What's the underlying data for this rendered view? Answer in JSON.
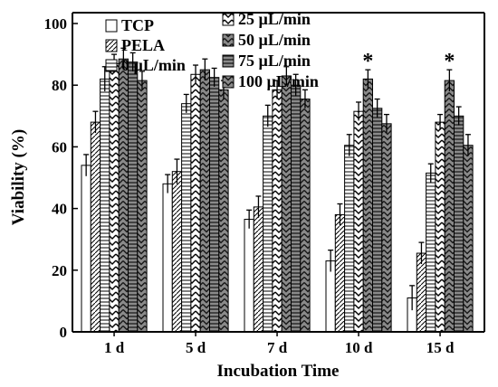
{
  "chart_data": {
    "type": "bar",
    "title": "",
    "xlabel": "Incubation Time",
    "ylabel": "Viability (%)",
    "categories": [
      "1 d",
      "5 d",
      "7 d",
      "10 d",
      "15 d"
    ],
    "ylim": [
      0,
      100
    ],
    "yticks": [
      0,
      20,
      40,
      60,
      80,
      100
    ],
    "grid": false,
    "legend_position": "top-left",
    "series": [
      {
        "name": "TCP",
        "values": [
          54,
          48,
          36.5,
          23,
          11
        ],
        "errors": [
          3.5,
          3,
          3,
          3.5,
          4
        ],
        "pattern": "white",
        "significant": [
          false,
          false,
          false,
          false,
          false
        ]
      },
      {
        "name": "PELA",
        "values": [
          68,
          52,
          40.5,
          38,
          25.5
        ],
        "errors": [
          3.5,
          4,
          3.5,
          3.5,
          3.5
        ],
        "pattern": "diagonal",
        "significant": [
          false,
          false,
          false,
          false,
          false
        ]
      },
      {
        "name": "0 µL/min",
        "values": [
          82,
          74,
          70,
          60.5,
          51.5
        ],
        "errors": [
          4,
          3,
          3.5,
          3.5,
          3
        ],
        "pattern": "horizontal",
        "significant": [
          false,
          false,
          false,
          false,
          false
        ]
      },
      {
        "name": "25 µL/min",
        "values": [
          87,
          83.5,
          78.5,
          71.5,
          68
        ],
        "errors": [
          3,
          3,
          3,
          3,
          2.5
        ],
        "pattern": "chevron-light",
        "significant": [
          false,
          false,
          false,
          false,
          false
        ]
      },
      {
        "name": "50 µL/min",
        "values": [
          88.5,
          85,
          83,
          82,
          81.5
        ],
        "errors": [
          3.5,
          3.5,
          3,
          3,
          3.5
        ],
        "pattern": "chevron-dark",
        "significant": [
          false,
          false,
          false,
          true,
          true
        ]
      },
      {
        "name": "75 µL/min",
        "values": [
          87.5,
          82.5,
          80,
          72.5,
          70
        ],
        "errors": [
          3,
          3,
          3.5,
          3,
          3
        ],
        "pattern": "horizontal-dark",
        "significant": [
          false,
          false,
          false,
          false,
          false
        ]
      },
      {
        "name": "100 µL/min",
        "values": [
          81.5,
          78.5,
          75.5,
          67.5,
          60.5
        ],
        "errors": [
          3,
          3,
          3,
          3,
          3.5
        ],
        "pattern": "chevron-dark",
        "significant": [
          false,
          false,
          false,
          false,
          false
        ]
      }
    ],
    "significance_marker": "*"
  }
}
